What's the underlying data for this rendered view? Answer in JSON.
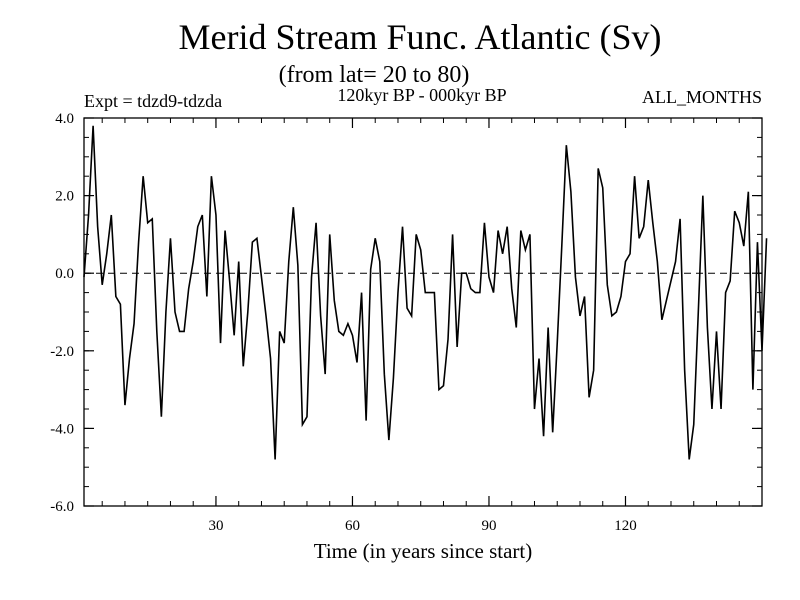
{
  "chart_data": {
    "type": "line",
    "title": "Merid Stream Func. Atlantic (Sv)",
    "subtitle": "(from lat= 20 to 80)",
    "experiment_label": "Expt = tdzd9-tdzda",
    "period_label": "120kyr BP - 000kyr BP",
    "months_label": "ALL_MONTHS",
    "xlabel": "Time (in years since start)",
    "ylabel": "",
    "xlim": [
      1,
      150
    ],
    "ylim": [
      -6,
      4
    ],
    "x_ticks": [
      30,
      60,
      90,
      120
    ],
    "x_tick_labels": [
      "30",
      "60",
      "90",
      "120"
    ],
    "y_ticks": [
      4,
      2,
      0,
      -2,
      -4,
      -6
    ],
    "y_tick_labels": [
      "4.0",
      "2.0",
      "0.0",
      "-2.0",
      "-4.0",
      "-6.0"
    ],
    "zero_line": "dashed",
    "grid": false,
    "x_start": 1,
    "series": [
      {
        "values": [
          -0.1,
          1.5,
          3.8,
          1.2,
          -0.3,
          0.5,
          1.5,
          -0.6,
          -0.8,
          -3.4,
          -2.2,
          -1.3,
          0.8,
          2.5,
          1.3,
          1.4,
          -1.5,
          -3.7,
          -1.0,
          0.9,
          -1.0,
          -1.5,
          -1.5,
          -0.4,
          0.3,
          1.2,
          1.5,
          -0.6,
          2.5,
          1.5,
          -1.8,
          1.1,
          -0.2,
          -1.6,
          0.3,
          -2.4,
          -1.0,
          0.8,
          0.9,
          -0.1,
          -1.1,
          -2.2,
          -4.8,
          -1.5,
          -1.8,
          0.3,
          1.7,
          0.2,
          -3.9,
          -3.7,
          -0.1,
          1.3,
          -1.1,
          -2.6,
          1.0,
          -0.7,
          -1.5,
          -1.6,
          -1.3,
          -1.6,
          -2.3,
          -0.5,
          -3.8,
          0.1,
          0.9,
          0.3,
          -2.6,
          -4.3,
          -2.7,
          -0.5,
          1.2,
          -0.9,
          -1.1,
          1.0,
          0.6,
          -0.5,
          -0.5,
          -0.5,
          -3.0,
          -2.9,
          -1.7,
          1.0,
          -1.9,
          0.0,
          0.0,
          -0.4,
          -0.5,
          -0.5,
          1.3,
          -0.1,
          -0.5,
          1.1,
          0.5,
          1.2,
          -0.4,
          -1.4,
          1.1,
          0.6,
          1.0,
          -3.5,
          -2.2,
          -4.2,
          -1.4,
          -4.1,
          -1.8,
          0.7,
          3.3,
          2.1,
          -0.1,
          -1.1,
          -0.6,
          -3.2,
          -2.5,
          2.7,
          2.2,
          -0.3,
          -1.1,
          -1.0,
          -0.6,
          0.3,
          0.5,
          2.5,
          0.9,
          1.2,
          2.4,
          1.3,
          0.3,
          -1.2,
          -0.7,
          -0.2,
          0.3,
          1.4,
          -2.5,
          -4.8,
          -3.9,
          -1.0,
          2.0,
          -1.4,
          -3.5,
          -1.5,
          -3.5,
          -0.5,
          -0.2,
          1.6,
          1.3,
          0.7,
          2.1,
          -3.0,
          0.8,
          -2.0,
          0.9
        ]
      }
    ]
  }
}
